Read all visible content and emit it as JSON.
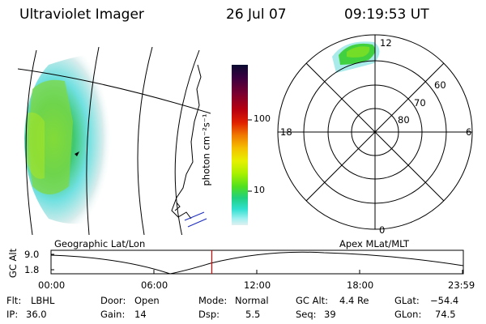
{
  "header": {
    "instrument": "Ultraviolet Imager",
    "date": "26 Jul 07",
    "time": "09:19:53 UT"
  },
  "colorbar": {
    "unit_label": "photon cm⁻²s⁻¹",
    "ticks": [
      "100",
      "10"
    ],
    "colors": [
      "#0a0a30",
      "#3a0040",
      "#7a0030",
      "#b80010",
      "#e02000",
      "#f07a00",
      "#f5c000",
      "#e6f000",
      "#a8f000",
      "#50e020",
      "#20d080",
      "#30e0d0",
      "#a0f0f0",
      "#e0f0f0"
    ]
  },
  "polar": {
    "mlt_labels": [
      "12",
      "18",
      "6",
      "0"
    ],
    "mlat_labels": [
      "60",
      "70",
      "80"
    ]
  },
  "timeline": {
    "left_title": "Geographic Lat/Lon",
    "right_title": "Apex MLat/MLT",
    "yaxis_label": "GC Alt",
    "y_ticks": [
      "9.0",
      "1.8"
    ],
    "x_ticks": [
      "00:00",
      "06:00",
      "12:00",
      "18:00",
      "23:59"
    ],
    "current_fraction": 0.39
  },
  "status": {
    "flt_label": "Flt:",
    "flt_value": "LBHL",
    "ip_label": "IP:",
    "ip_value": "36.0",
    "door_label": "Door:",
    "door_value": "Open",
    "gain_label": "Gain:",
    "gain_value": "14",
    "mode_label": "Mode:",
    "mode_value": "Normal",
    "dsp_label": "Dsp:",
    "dsp_value": "5.5",
    "gcalt_label": "GC Alt:",
    "gcalt_value": "4.4 Re",
    "seq_label": "Seq:",
    "seq_value": "39",
    "glat_label": "GLat:",
    "glat_value": "−54.4",
    "glon_label": "GLon:",
    "glon_value": "74.5"
  }
}
